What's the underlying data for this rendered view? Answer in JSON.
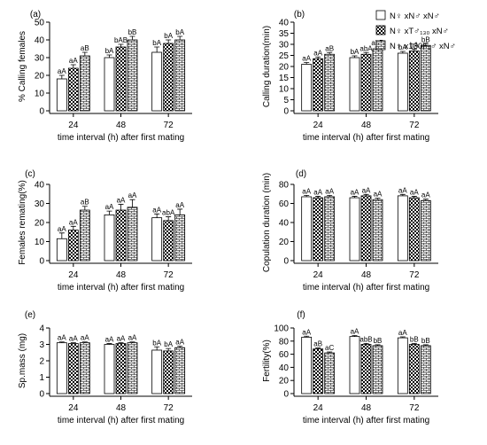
{
  "legend": [
    {
      "label": "N♀ xN♂ xN♂",
      "pattern": "white"
    },
    {
      "label": "N♀ xT♂₁₃₀ xN♂",
      "pattern": "checker"
    },
    {
      "label": "N♀ x130F₁♂ xN♂",
      "pattern": "brick"
    }
  ],
  "chart_data": [
    {
      "type": "bar",
      "panel": "(a)",
      "ylabel": "% Calling females",
      "xlabel": "time interval (h) after first mating",
      "categories": [
        "24",
        "48",
        "72"
      ],
      "ylim": [
        0,
        50
      ],
      "yticks": [
        0,
        10,
        20,
        30,
        40,
        50
      ],
      "series": [
        {
          "values": [
            18,
            30,
            33
          ],
          "errors": [
            2,
            1.5,
            3
          ]
        },
        {
          "values": [
            24,
            36,
            38
          ],
          "errors": [
            2,
            1.5,
            2
          ]
        },
        {
          "values": [
            31,
            40,
            40
          ],
          "errors": [
            2,
            2,
            2
          ]
        }
      ],
      "annotations": [
        [
          "aA",
          "bA",
          "bA"
        ],
        [
          "aA",
          "bAB",
          "bA"
        ],
        [
          "aB",
          "bB",
          "bA"
        ]
      ]
    },
    {
      "type": "bar",
      "panel": "(b)",
      "ylabel": "Calling duration(min)",
      "xlabel": "time interval (h) after first mating",
      "categories": [
        "24",
        "48",
        "72"
      ],
      "ylim": [
        0,
        40
      ],
      "yticks": [
        0,
        5,
        10,
        15,
        20,
        25,
        30,
        35,
        40
      ],
      "series": [
        {
          "values": [
            21,
            24,
            26
          ],
          "errors": [
            0.8,
            0.8,
            0.8
          ]
        },
        {
          "values": [
            23.5,
            25.5,
            27
          ],
          "errors": [
            0.8,
            0.8,
            0.8
          ]
        },
        {
          "values": [
            25.5,
            28,
            29.5
          ],
          "errors": [
            0.8,
            0.8,
            0.8
          ]
        }
      ],
      "annotations": [
        [
          "aA",
          "bA",
          "bA"
        ],
        [
          "aA",
          "abA",
          "bA"
        ],
        [
          "aB",
          "abB",
          "bB"
        ]
      ]
    },
    {
      "type": "bar",
      "panel": "(c)",
      "ylabel": "Females remating(%)",
      "xlabel": "time interval (h) after first mating",
      "categories": [
        "24",
        "48",
        "72"
      ],
      "ylim": [
        0,
        40
      ],
      "yticks": [
        0,
        10,
        20,
        30,
        40
      ],
      "series": [
        {
          "values": [
            11.5,
            24,
            22.5
          ],
          "errors": [
            3,
            2,
            2
          ]
        },
        {
          "values": [
            16,
            26.5,
            21
          ],
          "errors": [
            2,
            3,
            2
          ]
        },
        {
          "values": [
            26.5,
            28,
            24
          ],
          "errors": [
            2,
            4,
            3
          ]
        }
      ],
      "annotations": [
        [
          "aA",
          "aA",
          "aA"
        ],
        [
          "aA",
          "aA",
          "abA"
        ],
        [
          "aB",
          "aA",
          "aA"
        ]
      ]
    },
    {
      "type": "bar",
      "panel": "(d)",
      "ylabel": "Copulation duration (min)",
      "xlabel": "time interval (h) after first mating",
      "categories": [
        "24",
        "48",
        "72"
      ],
      "ylim": [
        0,
        80
      ],
      "yticks": [
        0,
        20,
        40,
        60,
        80
      ],
      "series": [
        {
          "values": [
            67,
            66,
            68
          ],
          "errors": [
            1.5,
            1.5,
            1.5
          ]
        },
        {
          "values": [
            66,
            68,
            66
          ],
          "errors": [
            1.5,
            1.5,
            1.5
          ]
        },
        {
          "values": [
            67,
            64,
            63
          ],
          "errors": [
            1.5,
            1.5,
            1.5
          ]
        }
      ],
      "annotations": [
        [
          "aA",
          "aA",
          "aA"
        ],
        [
          "aA",
          "aA",
          "aA"
        ],
        [
          "aA",
          "aA",
          "aA"
        ]
      ]
    },
    {
      "type": "bar",
      "panel": "(e)",
      "ylabel": "Sp.mass (mg)",
      "xlabel": "time interval (h) after first mating",
      "categories": [
        "24",
        "48",
        "72"
      ],
      "ylim": [
        0,
        4
      ],
      "yticks": [
        0,
        1,
        2,
        3,
        4
      ],
      "series": [
        {
          "values": [
            3.1,
            3.0,
            2.65
          ],
          "errors": [
            0.05,
            0.05,
            0.2
          ]
        },
        {
          "values": [
            3.05,
            3.05,
            2.6
          ],
          "errors": [
            0.05,
            0.05,
            0.15
          ]
        },
        {
          "values": [
            3.1,
            3.1,
            2.8
          ],
          "errors": [
            0.05,
            0.05,
            0.1
          ]
        }
      ],
      "annotations": [
        [
          "aA",
          "aA",
          "bA"
        ],
        [
          "aA",
          "aA",
          "bA"
        ],
        [
          "aA",
          "aA",
          "aA"
        ]
      ]
    },
    {
      "type": "bar",
      "panel": "(f)",
      "ylabel": "Fertility(%)",
      "xlabel": "time interval (h) after first mating",
      "categories": [
        "24",
        "48",
        "72"
      ],
      "ylim": [
        0,
        100
      ],
      "yticks": [
        0,
        20,
        40,
        60,
        80,
        100
      ],
      "series": [
        {
          "values": [
            86,
            87,
            85
          ],
          "errors": [
            1.5,
            1.5,
            1.5
          ]
        },
        {
          "values": [
            68,
            75,
            75
          ],
          "errors": [
            1.5,
            1.5,
            1.5
          ]
        },
        {
          "values": [
            62,
            73,
            73
          ],
          "errors": [
            1.5,
            1.5,
            1.5
          ]
        }
      ],
      "annotations": [
        [
          "aA",
          "aA",
          "aA"
        ],
        [
          "aB",
          "abB",
          "bB"
        ],
        [
          "aC",
          "bB",
          "bB"
        ]
      ]
    }
  ]
}
